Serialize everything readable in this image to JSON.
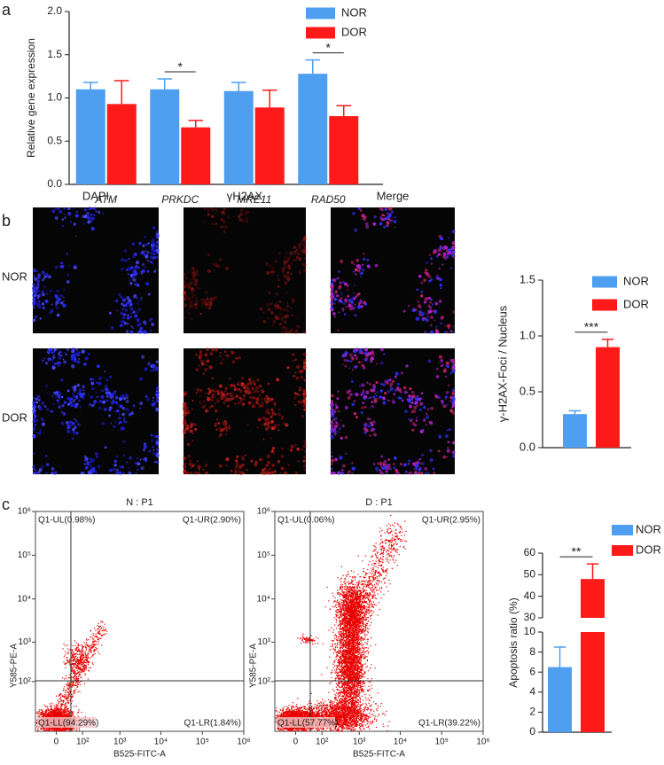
{
  "panel_labels": [
    "a",
    "b",
    "c"
  ],
  "micrographs": {
    "columns": [
      "DAPI",
      "γH2AX",
      "Merge"
    ],
    "rows": [
      "NOR",
      "DOR"
    ]
  },
  "chart_data": [
    {
      "type": "bar",
      "ylabel": "Relative gene expression",
      "categories": [
        "ATM",
        "PRKDC",
        "MRE11",
        "RAD50"
      ],
      "series": [
        {
          "name": "NOR",
          "color": "#4f9ff0",
          "values": [
            1.1,
            1.1,
            1.08,
            1.28
          ],
          "errors": [
            0.08,
            0.12,
            0.1,
            0.16
          ]
        },
        {
          "name": "DOR",
          "color": "#ff1a1a",
          "values": [
            0.93,
            0.66,
            0.89,
            0.79
          ],
          "errors": [
            0.27,
            0.08,
            0.2,
            0.12
          ]
        }
      ],
      "significance": [
        null,
        "*",
        null,
        "*"
      ],
      "ylim": [
        0,
        2
      ],
      "yticks": [
        {
          "value": 0,
          "label": "0.0"
        },
        {
          "value": 0.5,
          "label": "0.5"
        },
        {
          "value": 1,
          "label": "1.0"
        },
        {
          "value": 1.5,
          "label": "1.5"
        },
        {
          "value": 2,
          "label": "2.0"
        }
      ],
      "legend": "top-right"
    },
    {
      "type": "bar",
      "ylabel": "γ-H2AX-Foci / Nucleus",
      "series": [
        {
          "name": "NOR",
          "color": "#4f9ff0",
          "values": [
            0.3
          ],
          "errors": [
            0.03
          ]
        },
        {
          "name": "DOR",
          "color": "#ff1a1a",
          "values": [
            0.9
          ],
          "errors": [
            0.07
          ]
        }
      ],
      "significance": [
        "***"
      ],
      "ylim": [
        0,
        1.5
      ],
      "yticks": [
        {
          "value": 0,
          "label": "0.0"
        },
        {
          "value": 0.5,
          "label": "0.5"
        },
        {
          "value": 1,
          "label": "1.0"
        },
        {
          "value": 1.5,
          "label": "1.5"
        }
      ],
      "legend": "top-right"
    },
    {
      "type": "scatter",
      "title": "N : P1",
      "xlabel": "B525-FITC-A",
      "ylabel": "Y585-PE-A",
      "xscale": "symlog",
      "yscale": "symlog",
      "xlim": [
        -65,
        1000000
      ],
      "ylim": [
        -65,
        1000000
      ],
      "xticks": [
        0,
        {
          "value": 100,
          "label": "10²"
        },
        {
          "value": 1000,
          "label": "10³"
        },
        {
          "value": 10000,
          "label": "10⁴"
        },
        {
          "value": 100000,
          "label": "10⁵"
        },
        {
          "value": 1000000,
          "label": "10⁶"
        }
      ],
      "yticks": [
        {
          "value": 100,
          "label": "10²"
        },
        {
          "value": 1000,
          "label": "10³"
        },
        {
          "value": 10000,
          "label": "10⁴"
        },
        {
          "value": 100000,
          "label": "10⁵"
        },
        {
          "value": 1000000,
          "label": "10⁶"
        }
      ],
      "quadrants": {
        "UL": "Q1-UL(0.98%)",
        "UR": "Q1-UR(2.90%)",
        "LL": "Q1-LL(94.29%)",
        "LR": "Q1-LR(1.84%)"
      }
    },
    {
      "type": "scatter",
      "title": "D : P1",
      "xlabel": "B525-FITC-A",
      "ylabel": "Y585-PE-A",
      "xscale": "symlog",
      "yscale": "symlog",
      "xlim": [
        -65,
        1000000
      ],
      "ylim": [
        -65,
        1000000
      ],
      "xticks": [
        0,
        {
          "value": 100,
          "label": "10²"
        },
        {
          "value": 1000,
          "label": "10³"
        },
        {
          "value": 10000,
          "label": "10⁴"
        },
        {
          "value": 100000,
          "label": "10⁵"
        },
        {
          "value": 1000000,
          "label": "10⁶"
        }
      ],
      "yticks": [
        {
          "value": 100,
          "label": "10²"
        },
        {
          "value": 1000,
          "label": "10³"
        },
        {
          "value": 10000,
          "label": "10⁴"
        },
        {
          "value": 100000,
          "label": "10⁵"
        },
        {
          "value": 1000000,
          "label": "10⁶"
        }
      ],
      "quadrants": {
        "UL": "Q1-UL(0.06%)",
        "UR": "Q1-UR(2.95%)",
        "LL": "Q1-LL(57.77%)",
        "LR": "Q1-LR(39.22%)"
      }
    },
    {
      "type": "bar",
      "ylabel": "Apoptosis ratio (%)",
      "series": [
        {
          "name": "NOR",
          "color": "#4f9ff0",
          "values": [
            6.5
          ],
          "errors": [
            2
          ]
        },
        {
          "name": "DOR",
          "color": "#ff1a1a",
          "values": [
            48
          ],
          "errors": [
            7
          ]
        }
      ],
      "significance": [
        "**"
      ],
      "ylim": [
        0,
        60
      ],
      "ybreak": [
        10,
        30
      ],
      "yticks": [
        0,
        2,
        4,
        6,
        8,
        10,
        30,
        40,
        50,
        60
      ],
      "legend": "top-right"
    }
  ]
}
